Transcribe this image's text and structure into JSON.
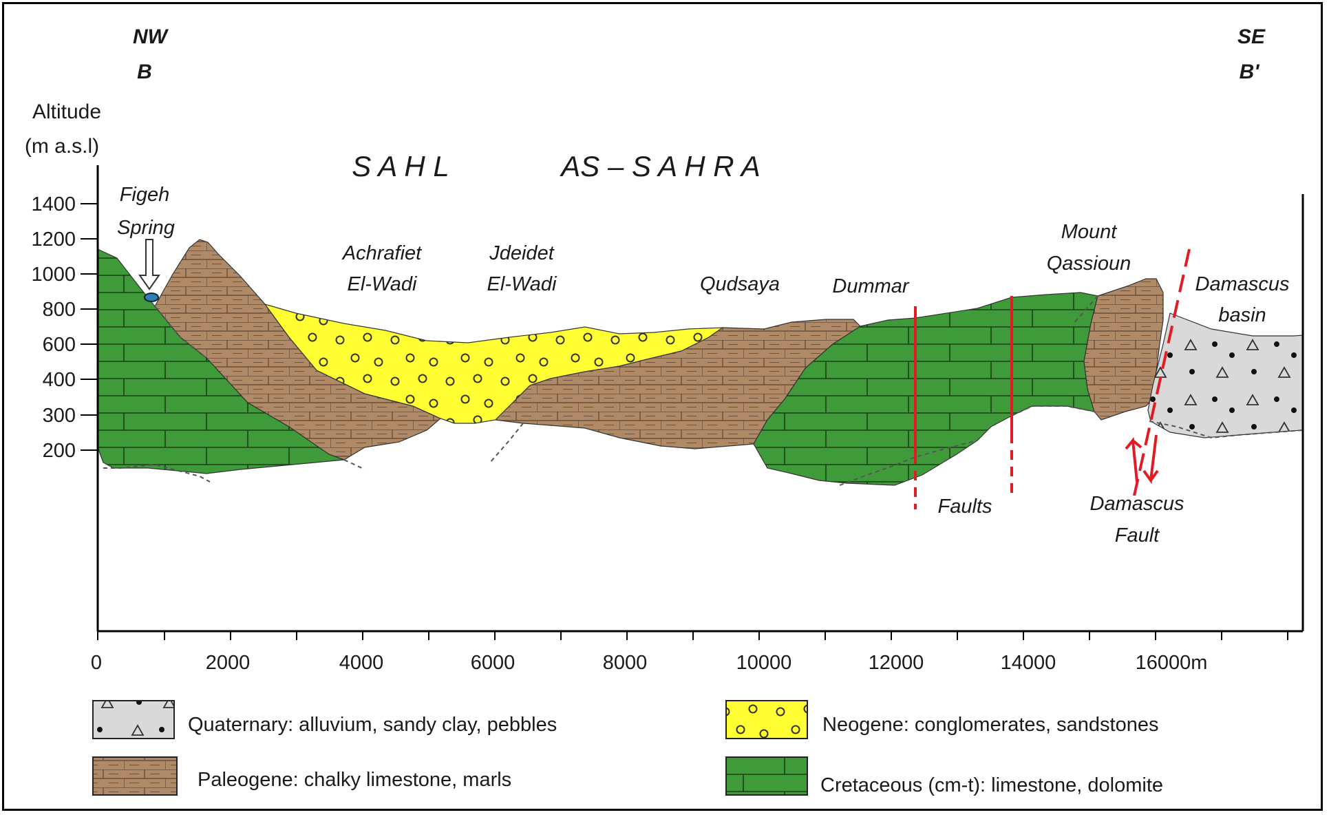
{
  "orientation": {
    "nw": "NW",
    "b": "B",
    "se": "SE",
    "b_prime": "B'"
  },
  "axis": {
    "ylabel_line1": "Altitude",
    "ylabel_line2": "(m a.s.l)",
    "y_ticks": [
      "1400",
      "1200",
      "1000",
      "800",
      "600",
      "400",
      "300",
      "200"
    ],
    "x_ticks": [
      "0",
      "2000",
      "4000",
      "6000",
      "8000",
      "10000",
      "12000",
      "14000",
      "16000m"
    ]
  },
  "region": {
    "word1": "S A H L",
    "word2": "AS – S A H R A"
  },
  "places": {
    "figeh_line1": "Figeh",
    "figeh_line2": "Spring",
    "achrafiet_line1": "Achrafiet",
    "achrafiet_line2": "El-Wadi",
    "jdeidet_line1": "Jdeidet",
    "jdeidet_line2": "El-Wadi",
    "qudsaya": "Qudsaya",
    "dummar": "Dummar",
    "mount_line1": "Mount",
    "mount_line2": "Qassioun",
    "basin_line1": "Damascus",
    "basin_line2": "basin",
    "faults": "Faults",
    "dfault_line1": "Damascus",
    "dfault_line2": "Fault"
  },
  "legend": {
    "quaternary": "Quaternary: alluvium, sandy clay, pebbles",
    "neogene": "Neogene: conglomerates, sandstones",
    "paleogene": "Paleogene: chalky limestone, marls",
    "cretaceous": "Cretaceous (cm-t): limestone, dolomite"
  },
  "colors": {
    "cretaceous": "#3f9a3a",
    "paleogene": "#b08a66",
    "neogene": "#ffff33",
    "quaternary": "#d9d9d9",
    "fault": "#e01b24",
    "spring": "#2f7fb8"
  }
}
